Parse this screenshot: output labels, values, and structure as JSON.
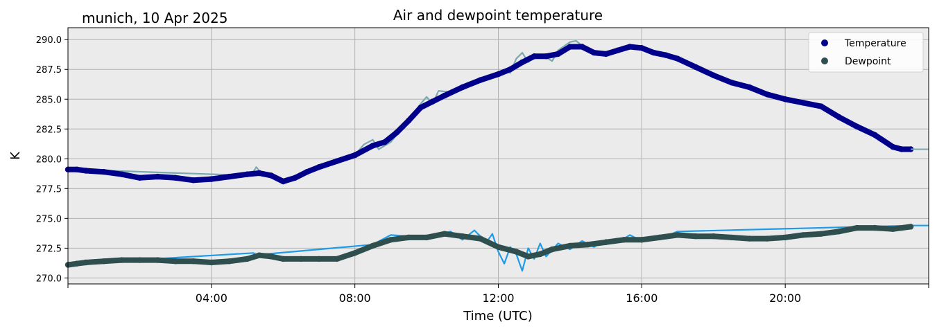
{
  "chart_data": {
    "type": "line",
    "title": "Air and dewpoint temperature",
    "subtitle": "munich, 10 Apr 2025",
    "xlabel": "Time (UTC)",
    "ylabel": "K",
    "xlim": [
      "00:00",
      "24:00"
    ],
    "ylim": [
      269.5,
      291.0
    ],
    "x_ticks": [
      "04:00",
      "08:00",
      "12:00",
      "16:00",
      "20:00"
    ],
    "y_ticks": [
      "270.0",
      "272.5",
      "275.0",
      "277.5",
      "280.0",
      "282.5",
      "285.0",
      "287.5",
      "290.0"
    ],
    "grid": true,
    "legend_position": "top-right",
    "background_color": "#ebebeb",
    "series": [
      {
        "name": "Temperature",
        "marker_color": "#00008b",
        "raw_color": "#7aa8b0",
        "x": [
          "00:00",
          "00:15",
          "00:30",
          "01:00",
          "01:30",
          "02:00",
          "02:30",
          "03:00",
          "03:30",
          "04:00",
          "04:30",
          "05:00",
          "05:20",
          "05:40",
          "06:00",
          "06:20",
          "06:40",
          "07:00",
          "07:30",
          "08:00",
          "08:30",
          "08:50",
          "09:10",
          "09:30",
          "09:50",
          "10:10",
          "10:30",
          "11:00",
          "11:30",
          "12:00",
          "12:20",
          "12:40",
          "13:00",
          "13:20",
          "13:40",
          "14:00",
          "14:20",
          "14:40",
          "15:00",
          "15:20",
          "15:40",
          "16:00",
          "16:20",
          "16:40",
          "17:00",
          "17:30",
          "18:00",
          "18:30",
          "19:00",
          "19:30",
          "20:00",
          "20:30",
          "21:00",
          "21:30",
          "22:00",
          "22:30",
          "23:00",
          "23:15",
          "23:30"
        ],
        "values": [
          279.1,
          279.1,
          279.0,
          278.9,
          278.7,
          278.4,
          278.5,
          278.4,
          278.2,
          278.3,
          278.5,
          278.7,
          278.8,
          278.6,
          278.1,
          278.4,
          278.9,
          279.3,
          279.8,
          280.3,
          281.1,
          281.4,
          282.2,
          283.2,
          284.3,
          284.8,
          285.3,
          286.0,
          286.6,
          287.1,
          287.5,
          288.1,
          288.6,
          288.6,
          288.8,
          289.4,
          289.4,
          288.9,
          288.8,
          289.1,
          289.4,
          289.3,
          288.9,
          288.7,
          288.4,
          287.7,
          287.0,
          286.4,
          286.0,
          285.4,
          285.0,
          284.7,
          284.4,
          283.5,
          282.7,
          282.0,
          281.0,
          280.8,
          280.8
        ],
        "raw_x": [
          "00:00",
          "00:15",
          "05:00",
          "05:10",
          "05:15",
          "05:25",
          "05:40",
          "06:00",
          "06:20",
          "08:00",
          "08:15",
          "08:30",
          "08:40",
          "09:00",
          "09:30",
          "09:50",
          "10:00",
          "10:10",
          "10:20",
          "10:40",
          "11:00",
          "11:30",
          "12:00",
          "12:10",
          "12:20",
          "12:30",
          "12:40",
          "12:50",
          "13:00",
          "13:20",
          "13:30",
          "13:40",
          "14:00",
          "14:10",
          "14:20",
          "14:40",
          "15:00",
          "15:30",
          "16:00",
          "16:15",
          "16:30",
          "16:50",
          "17:10",
          "17:30"
        ],
        "raw_values": [
          279.1,
          279.1,
          278.6,
          278.9,
          279.3,
          278.7,
          278.5,
          277.9,
          278.4,
          280.3,
          281.2,
          281.6,
          280.8,
          281.4,
          283.2,
          284.6,
          285.2,
          284.6,
          285.7,
          285.6,
          286.1,
          286.8,
          287.0,
          287.4,
          287.2,
          288.4,
          288.9,
          288.1,
          288.8,
          288.5,
          288.2,
          289.1,
          289.8,
          289.9,
          289.5,
          289.0,
          288.6,
          289.1,
          289.5,
          288.9,
          288.7,
          288.6,
          288.1,
          287.6
        ]
      },
      {
        "name": "Dewpoint",
        "marker_color": "#2f4f4f",
        "raw_color": "#1e9be8",
        "x": [
          "00:00",
          "00:15",
          "00:30",
          "01:00",
          "01:30",
          "02:00",
          "02:30",
          "03:00",
          "03:30",
          "04:00",
          "04:30",
          "05:00",
          "05:20",
          "05:40",
          "06:00",
          "06:30",
          "07:00",
          "07:30",
          "08:00",
          "08:30",
          "09:00",
          "09:30",
          "10:00",
          "10:30",
          "11:00",
          "11:30",
          "12:00",
          "12:30",
          "12:50",
          "13:10",
          "13:30",
          "14:00",
          "14:30",
          "15:00",
          "15:30",
          "16:00",
          "16:30",
          "17:00",
          "17:30",
          "18:00",
          "18:30",
          "19:00",
          "19:30",
          "20:00",
          "20:30",
          "21:00",
          "21:30",
          "22:00",
          "22:30",
          "23:00",
          "23:30"
        ],
        "values": [
          271.1,
          271.2,
          271.3,
          271.4,
          271.5,
          271.5,
          271.5,
          271.4,
          271.4,
          271.3,
          271.4,
          271.6,
          271.9,
          271.8,
          271.6,
          271.6,
          271.6,
          271.6,
          272.1,
          272.7,
          273.2,
          273.4,
          273.4,
          273.7,
          273.5,
          273.3,
          272.6,
          272.2,
          271.8,
          272.0,
          272.4,
          272.7,
          272.8,
          273.0,
          273.2,
          273.2,
          273.4,
          273.6,
          273.5,
          273.5,
          273.4,
          273.3,
          273.3,
          273.4,
          273.6,
          273.7,
          273.9,
          274.2,
          274.2,
          274.1,
          274.3
        ],
        "raw_x": [
          "00:00",
          "00:15",
          "05:10",
          "05:20",
          "05:30",
          "08:30",
          "09:00",
          "10:00",
          "10:40",
          "11:00",
          "11:20",
          "11:40",
          "11:50",
          "12:00",
          "12:10",
          "12:20",
          "12:30",
          "12:40",
          "12:50",
          "13:00",
          "13:10",
          "13:20",
          "13:40",
          "14:00",
          "14:20",
          "14:40",
          "15:00",
          "15:20",
          "15:40",
          "16:00",
          "16:40",
          "17:00",
          "23:30",
          "24:00"
        ],
        "raw_values": [
          271.0,
          271.2,
          272.1,
          271.8,
          272.0,
          272.8,
          273.6,
          273.4,
          273.9,
          273.2,
          274.0,
          273.0,
          273.7,
          272.2,
          271.2,
          272.6,
          272.0,
          270.6,
          272.5,
          271.6,
          272.9,
          271.8,
          272.9,
          272.4,
          273.1,
          272.6,
          273.2,
          273.0,
          273.6,
          273.1,
          273.5,
          273.9,
          274.4,
          274.4
        ]
      }
    ]
  }
}
